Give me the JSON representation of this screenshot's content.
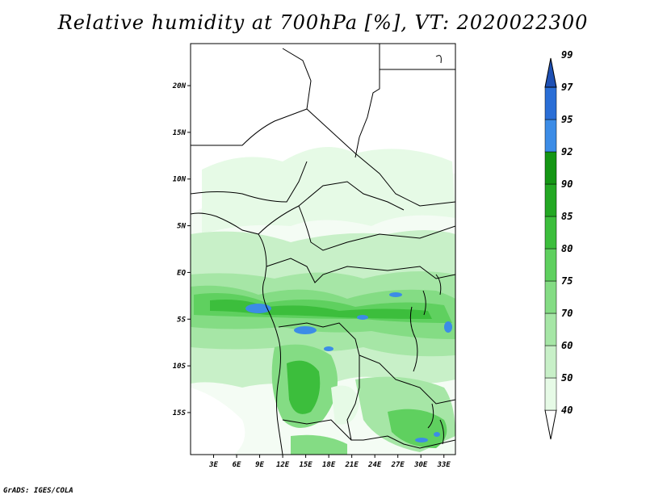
{
  "title": "Relative humidity at 700hPa [%], VT: 2020022300",
  "credit": "GrADS: IGES/COLA",
  "map": {
    "type": "filled-contour-map",
    "lon_range": [
      0,
      34.5
    ],
    "lat_range": [
      -19.5,
      24.5
    ],
    "lat_ticks": [
      {
        "value": 20,
        "label": "20N"
      },
      {
        "value": 15,
        "label": "15N"
      },
      {
        "value": 10,
        "label": "10N"
      },
      {
        "value": 5,
        "label": "5N"
      },
      {
        "value": 0,
        "label": "EQ"
      },
      {
        "value": -5,
        "label": "5S"
      },
      {
        "value": -10,
        "label": "10S"
      },
      {
        "value": -15,
        "label": "15S"
      }
    ],
    "lon_ticks": [
      {
        "value": 3,
        "label": "3E"
      },
      {
        "value": 6,
        "label": "6E"
      },
      {
        "value": 9,
        "label": "9E"
      },
      {
        "value": 12,
        "label": "12E"
      },
      {
        "value": 15,
        "label": "15E"
      },
      {
        "value": 18,
        "label": "18E"
      },
      {
        "value": 21,
        "label": "21E"
      },
      {
        "value": 24,
        "label": "24E"
      },
      {
        "value": 27,
        "label": "27E"
      },
      {
        "value": 30,
        "label": "30E"
      },
      {
        "value": 33,
        "label": "33E"
      }
    ]
  },
  "colorbar": {
    "colors": [
      "#ffffff",
      "#e6fae6",
      "#c8f0c8",
      "#a6e6a6",
      "#84dc84",
      "#5fd05f",
      "#3cbe3c",
      "#23a823",
      "#149614",
      "#3c8ce6",
      "#2a6ed6",
      "#1e50b4"
    ],
    "labels": [
      "40",
      "50",
      "60",
      "70",
      "75",
      "80",
      "85",
      "90",
      "92",
      "95",
      "97",
      "99"
    ]
  }
}
